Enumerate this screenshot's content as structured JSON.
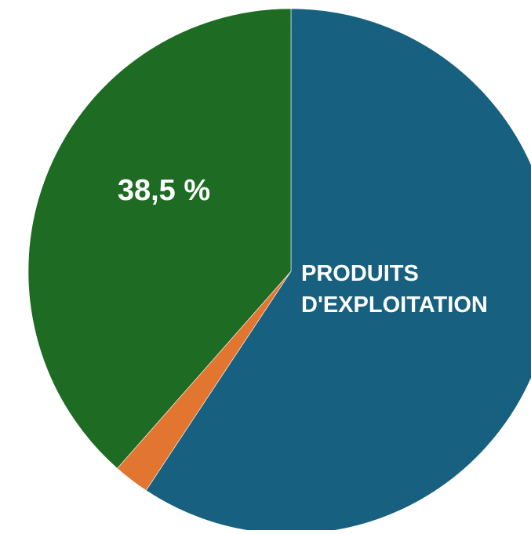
{
  "chart_data": {
    "type": "pie",
    "slices": [
      {
        "label": "PRODUITS D'EXPLOITATION",
        "value": 59.3,
        "color": "#17607f",
        "label_lines": [
          "PRODUITS",
          "D'EXPLOITATION"
        ]
      },
      {
        "label": "",
        "value": 2.2,
        "color": "#e2752f"
      },
      {
        "label": "",
        "value": 38.5,
        "color": "#1e6b23",
        "data_label": "38,5 %"
      }
    ],
    "start_angle_deg": 0,
    "direction": "clockwise",
    "legend": "none"
  }
}
